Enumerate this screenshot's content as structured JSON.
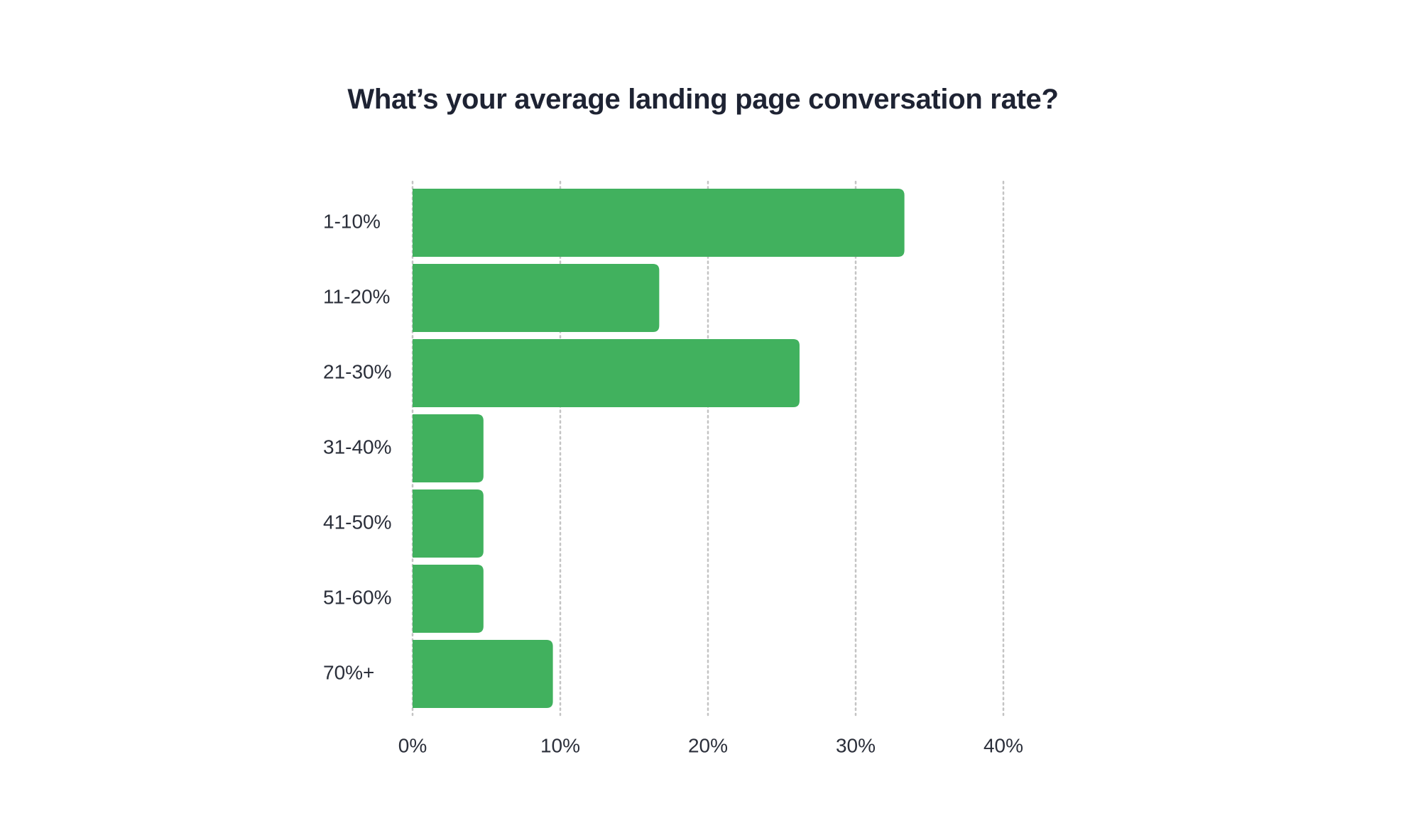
{
  "chart_data": {
    "type": "bar",
    "orientation": "horizontal",
    "title": "What’s your average landing page conversation rate?",
    "categories": [
      "1-10%",
      "11-20%",
      "21-30%",
      "31-40%",
      "41-50%",
      "51-60%",
      "70%+"
    ],
    "values": [
      33.3,
      16.7,
      26.2,
      4.8,
      4.8,
      4.8,
      9.5
    ],
    "xlabel": "",
    "ylabel": "",
    "xlim": [
      0,
      40
    ],
    "x_ticks": [
      0,
      10,
      20,
      30,
      40
    ],
    "x_tick_labels": [
      "0%",
      "10%",
      "20%",
      "30%",
      "40%"
    ],
    "grid": "vertical dotted",
    "bar_color": "#41b15e",
    "gridline_color": "#c4c4c4",
    "text_color": "#2b2f3a",
    "title_color": "#1e2333",
    "legend": "none"
  }
}
